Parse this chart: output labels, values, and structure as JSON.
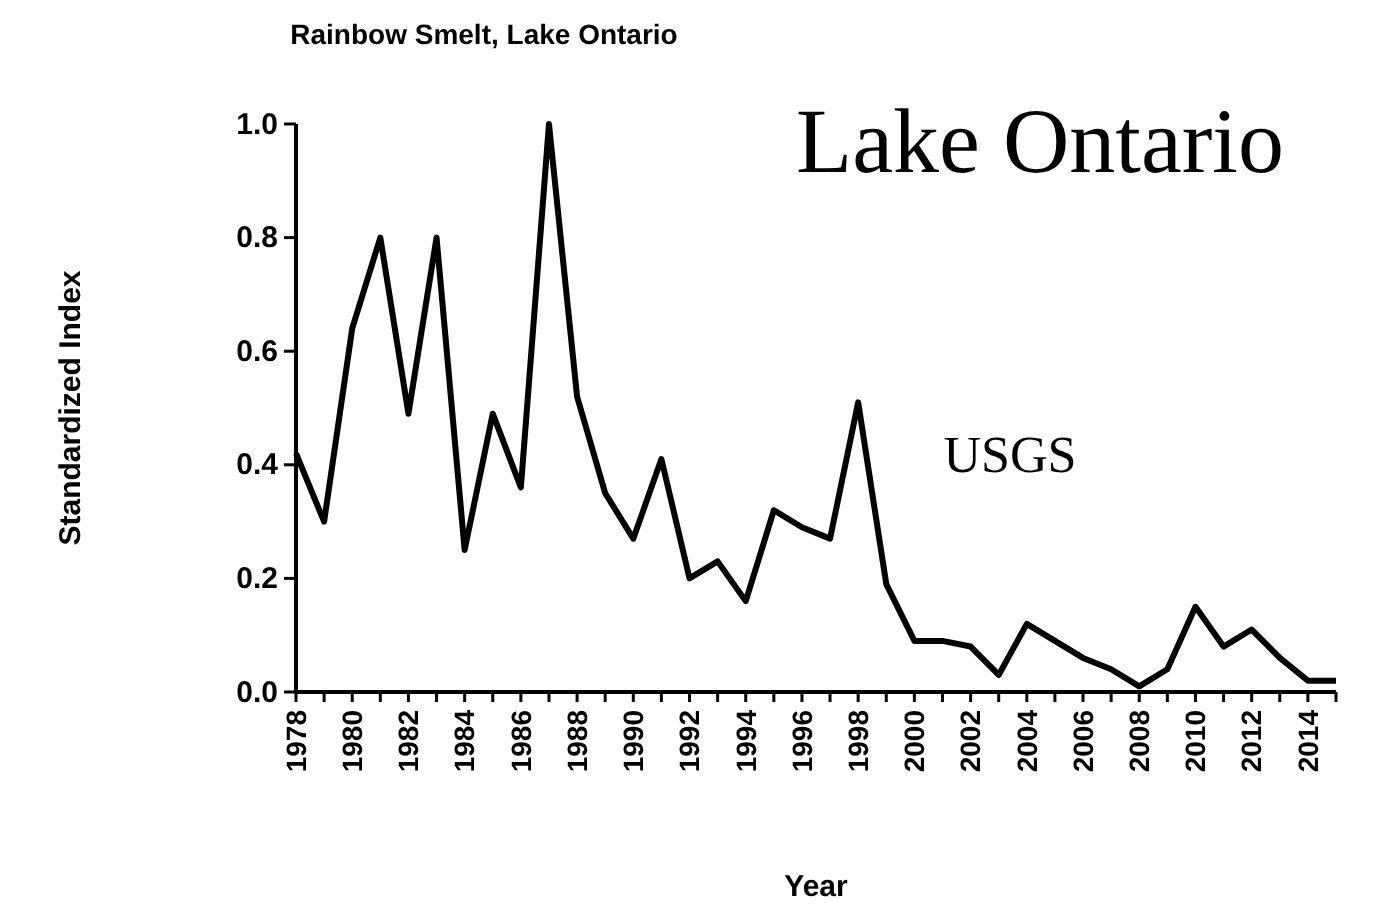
{
  "chart_data": {
    "type": "line",
    "title": "Rainbow Smelt, Lake Ontario",
    "xlabel": "Year",
    "ylabel": "Standardized Index",
    "x": [
      1978,
      1979,
      1980,
      1981,
      1982,
      1983,
      1984,
      1985,
      1986,
      1987,
      1988,
      1989,
      1990,
      1991,
      1992,
      1993,
      1994,
      1995,
      1996,
      1997,
      1998,
      1999,
      2000,
      2001,
      2002,
      2003,
      2004,
      2005,
      2006,
      2007,
      2008,
      2009,
      2010,
      2011,
      2012,
      2013,
      2014,
      2015
    ],
    "series": [
      {
        "color": "#000000",
        "values": [
          0.42,
          0.3,
          0.64,
          0.8,
          0.49,
          0.8,
          0.25,
          0.49,
          0.36,
          1.0,
          0.52,
          0.35,
          0.27,
          0.41,
          0.2,
          0.23,
          0.16,
          0.32,
          0.29,
          0.27,
          0.51,
          0.19,
          0.09,
          0.09,
          0.08,
          0.03,
          0.12,
          0.09,
          0.06,
          0.04,
          0.01,
          0.04,
          0.15,
          0.08,
          0.11,
          0.06,
          0.02,
          0.02
        ]
      }
    ],
    "xlim": [
      1978,
      2015
    ],
    "xticks": [
      1978,
      {
        "value": 1979,
        "label": null
      },
      1980,
      {
        "value": 1981,
        "label": null
      },
      1982,
      {
        "value": 1983,
        "label": null
      },
      1984,
      {
        "value": 1985,
        "label": null
      },
      1986,
      {
        "value": 1987,
        "label": null
      },
      1988,
      {
        "value": 1989,
        "label": null
      },
      1990,
      {
        "value": 1991,
        "label": null
      },
      1992,
      {
        "value": 1993,
        "label": null
      },
      1994,
      {
        "value": 1995,
        "label": null
      },
      1996,
      {
        "value": 1997,
        "label": null
      },
      1998,
      {
        "value": 1999,
        "label": null
      },
      2000,
      {
        "value": 2001,
        "label": null
      },
      2002,
      {
        "value": 2003,
        "label": null
      },
      2004,
      {
        "value": 2005,
        "label": null
      },
      2006,
      {
        "value": 2007,
        "label": null
      },
      2008,
      {
        "value": 2009,
        "label": null
      },
      2010,
      {
        "value": 2011,
        "label": null
      },
      2012,
      {
        "value": 2013,
        "label": null
      },
      2014,
      {
        "value": 2015,
        "label": null
      }
    ],
    "ylim": [
      0,
      1
    ],
    "yticks": [
      {
        "value": 0,
        "label": "0.0"
      },
      {
        "value": 0.2,
        "label": "0.2"
      },
      {
        "value": 0.4,
        "label": "0.4"
      },
      {
        "value": 0.6,
        "label": "0.6"
      },
      {
        "value": 0.8,
        "label": "0.8"
      },
      {
        "value": 1,
        "label": "1.0"
      }
    ],
    "marker": "none",
    "line_style": "solid",
    "annotations": [
      "Lake Ontario",
      "USGS"
    ]
  }
}
